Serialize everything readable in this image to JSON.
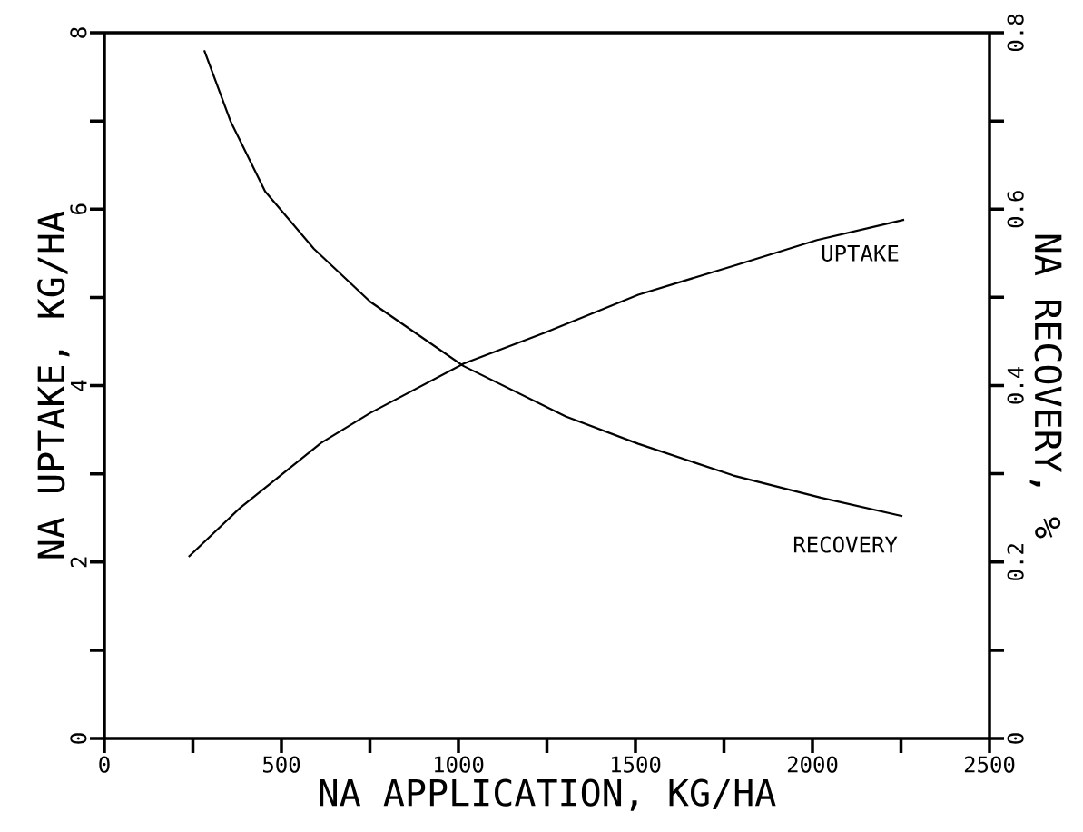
{
  "chart_data": {
    "type": "line",
    "xlabel": "NA APPLICATION, KG/HA",
    "ylabel": "NA UPTAKE, KG/HA",
    "y2label": "NA RECOVERY, %",
    "xlim": [
      0,
      2500
    ],
    "ylim": [
      0,
      8
    ],
    "y2lim": [
      0,
      0.8
    ],
    "xticks": [
      0,
      {
        "value": 250,
        "label": null
      },
      500,
      {
        "value": 750,
        "label": null
      },
      1000,
      {
        "value": 1250,
        "label": null
      },
      1500,
      {
        "value": 1750,
        "label": null
      },
      2000,
      {
        "value": 2250,
        "label": null
      },
      2500
    ],
    "yticks": [
      0,
      {
        "value": 1,
        "label": null
      },
      2,
      {
        "value": 3,
        "label": null
      },
      4,
      {
        "value": 5,
        "label": null
      },
      6,
      {
        "value": 7,
        "label": null
      },
      8
    ],
    "y2ticks": [
      0,
      {
        "value": 0.1,
        "label": null
      },
      0.2,
      {
        "value": 0.3,
        "label": null
      },
      0.4,
      {
        "value": 0.5,
        "label": null
      },
      0.6,
      {
        "value": 0.7,
        "label": null
      },
      0.8
    ],
    "marker": "none",
    "line_style": "solid",
    "grid": false,
    "legend": false,
    "series": [
      {
        "name": "UPTAKE",
        "color": "#000000",
        "x": [
          238,
          385,
          485,
          612,
          751,
          1015,
          1244,
          1508,
          1787,
          2013,
          2259
        ],
        "values": [
          2.06,
          2.62,
          2.94,
          3.35,
          3.69,
          4.25,
          4.6,
          5.03,
          5.37,
          5.65,
          5.88
        ]
      },
      {
        "name": "RECOVERY",
        "color": "#000000",
        "axis": "y2",
        "x": [
          282,
          356,
          454,
          592,
          751,
          1015,
          1303,
          1508,
          1777,
          2023,
          2254
        ],
        "values": [
          0.78,
          0.7,
          0.62,
          0.555,
          0.495,
          0.422,
          0.365,
          0.334,
          0.298,
          0.273,
          0.252
        ]
      }
    ]
  }
}
